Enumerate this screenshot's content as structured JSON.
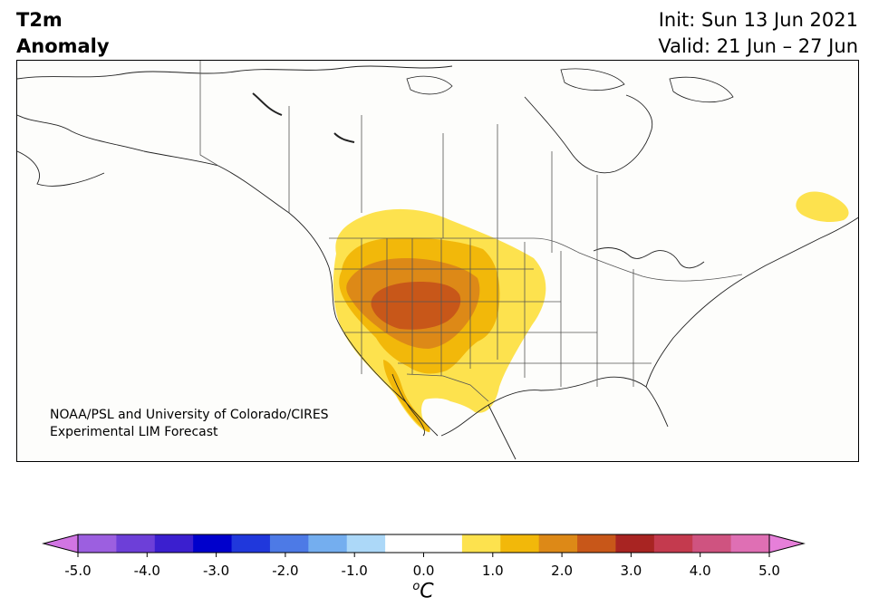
{
  "header": {
    "title_line1": "T2m",
    "title_line2": "Anomaly",
    "init_text": "Init: Sun 13 Jun 2021",
    "valid_text": "Valid: 21 Jun – 27 Jun"
  },
  "credit": {
    "line1": "NOAA/PSL and University of Colorado/CIRES",
    "line2": "Experimental LIM Forecast"
  },
  "map": {
    "region": "North America",
    "anomaly_levels": [
      {
        "level": "0.5 to 1.0",
        "color": "#fde24e"
      },
      {
        "level": "1.0 to 1.5",
        "color": "#f2b80a"
      },
      {
        "level": "1.5 to 2.0",
        "color": "#dd8917"
      },
      {
        "level": "2.0 to 2.5",
        "color": "#c85719"
      }
    ]
  },
  "colorbar": {
    "ticks": [
      "-5.0",
      "-4.0",
      "-3.0",
      "-2.0",
      "-1.0",
      "0.0",
      "1.0",
      "2.0",
      "3.0",
      "4.0",
      "5.0"
    ],
    "unit_sup": "o",
    "unit_main": "C",
    "low_extend_color": "#d175e3",
    "high_extend_color": "#e67fd9",
    "segments": [
      "#9c5fe0",
      "#6d3fd8",
      "#3b1fcf",
      "#0000cc",
      "#2038dc",
      "#4d7ae6",
      "#74aeef",
      "#acd8f8",
      "#ffffff",
      "#ffffff",
      "#fde24e",
      "#f2b80a",
      "#dd8917",
      "#c85719",
      "#a82422",
      "#c43a4e",
      "#cf5380",
      "#df6fb4"
    ]
  }
}
